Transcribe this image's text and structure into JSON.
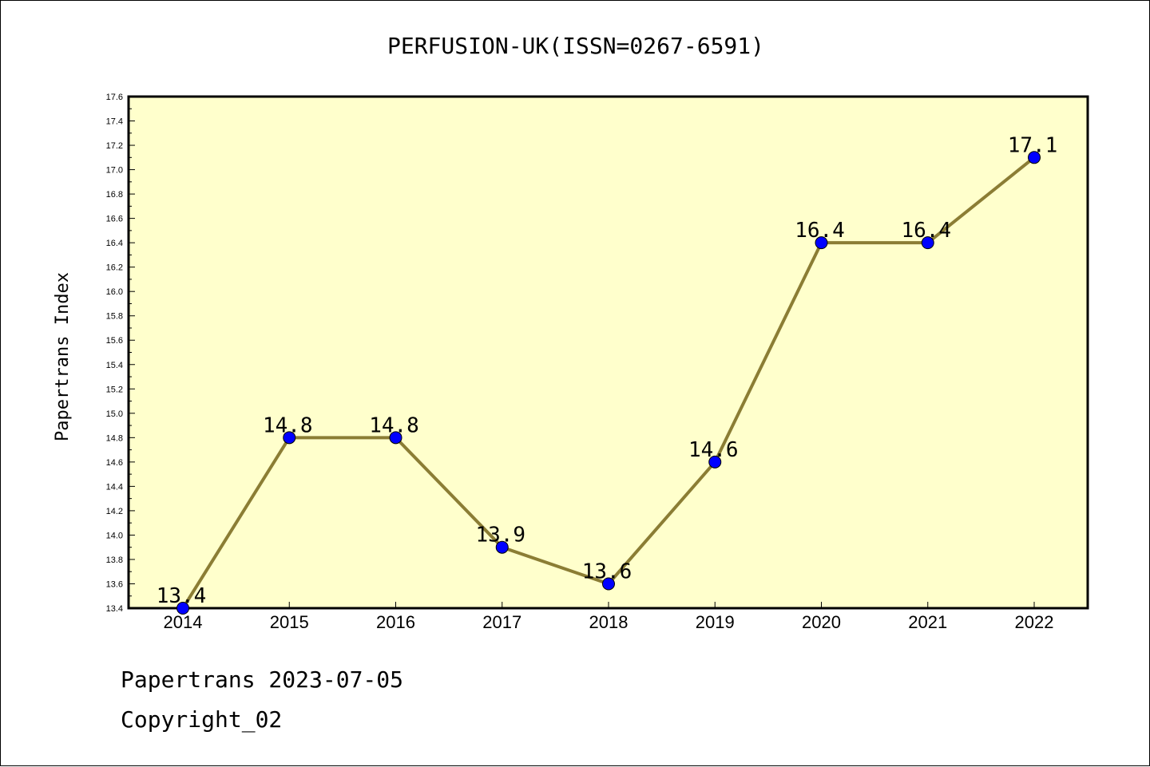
{
  "chart_data": {
    "type": "line",
    "title": "PERFUSION-UK(ISSN=0267-6591)",
    "ylabel": "Papertrans Index",
    "xlabel": "",
    "categories": [
      "2014",
      "2015",
      "2016",
      "2017",
      "2018",
      "2019",
      "2020",
      "2021",
      "2022"
    ],
    "values": [
      13.4,
      14.8,
      14.8,
      13.9,
      13.6,
      14.6,
      16.4,
      16.4,
      17.1
    ],
    "data_labels": [
      "13.4",
      "14.8",
      "14.8",
      "13.9",
      "13.6",
      "14.6",
      "16.4",
      "16.4",
      "17.1"
    ],
    "ylim": [
      13.4,
      17.6
    ],
    "ytick_step": 0.2,
    "grid": false,
    "colors": {
      "plot_bg": "#ffffcc",
      "line": "#8b7d34",
      "marker": "#0000ff"
    }
  },
  "footer": {
    "line1": "Papertrans 2023-07-05",
    "line2": "Copyright_02"
  }
}
